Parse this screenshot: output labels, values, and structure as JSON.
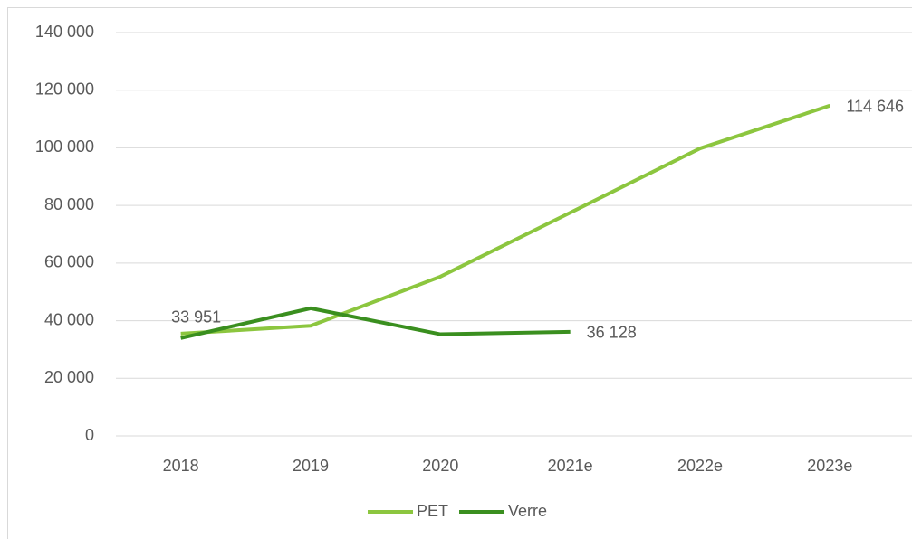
{
  "chart_data": {
    "type": "line",
    "categories": [
      "2018",
      "2019",
      "2020",
      "2021e",
      "2022e",
      "2023e"
    ],
    "series": [
      {
        "name": "PET",
        "color": "#8cc63f",
        "values": [
          35500,
          38200,
          55300,
          77500,
          99800,
          114646
        ],
        "value_labels": [
          null,
          null,
          null,
          null,
          null,
          "114 646"
        ]
      },
      {
        "name": "Verre",
        "color": "#3a8f1f",
        "values": [
          33951,
          44300,
          35300,
          36128,
          null,
          null
        ],
        "value_labels": [
          "33 951",
          null,
          null,
          "36 128",
          null,
          null
        ]
      }
    ],
    "ylim": [
      0,
      140000
    ],
    "yticks": [
      0,
      {
        "value": 20000,
        "label": "20 000"
      },
      {
        "value": 40000,
        "label": "40 000"
      },
      {
        "value": 60000,
        "label": "60 000"
      },
      {
        "value": 80000,
        "label": "80 000"
      },
      {
        "value": 100000,
        "label": "100 000"
      },
      {
        "value": 120000,
        "label": "120 000"
      },
      {
        "value": 140000,
        "label": "140 000"
      }
    ],
    "grid": true,
    "legend": "bottom"
  }
}
